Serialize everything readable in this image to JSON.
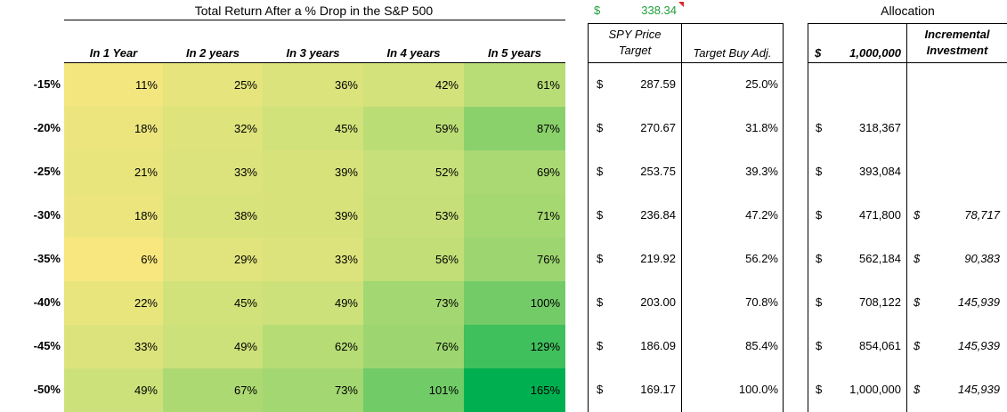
{
  "heatmap": {
    "title": "Total Return After a % Drop in the S&P 500",
    "columns": [
      "In 1 Year",
      "In 2 years",
      "In 3 years",
      "In 4 years",
      "In 5 years"
    ],
    "row_labels": [
      "-15%",
      "-20%",
      "-25%",
      "-30%",
      "-35%",
      "-40%",
      "-45%",
      "-50%"
    ],
    "values": [
      [
        "11%",
        "25%",
        "36%",
        "42%",
        "61%"
      ],
      [
        "18%",
        "32%",
        "45%",
        "59%",
        "87%"
      ],
      [
        "21%",
        "33%",
        "39%",
        "52%",
        "69%"
      ],
      [
        "18%",
        "38%",
        "39%",
        "53%",
        "71%"
      ],
      [
        "6%",
        "29%",
        "33%",
        "56%",
        "76%"
      ],
      [
        "22%",
        "45%",
        "49%",
        "73%",
        "100%"
      ],
      [
        "33%",
        "49%",
        "62%",
        "76%",
        "129%"
      ],
      [
        "49%",
        "67%",
        "73%",
        "101%",
        "165%"
      ]
    ],
    "color_low": "#f8e77f",
    "color_mid": "#cde17a",
    "color_high": "#00b050"
  },
  "spy_price": {
    "currency": "$",
    "value": "338.34",
    "color": "#1f9e3a"
  },
  "targets": {
    "header_line1": "SPY Price",
    "header_line2": "Target",
    "adj_header": "Target Buy Adj.",
    "currency": "$",
    "prices": [
      "287.59",
      "270.67",
      "253.75",
      "236.84",
      "219.92",
      "203.00",
      "186.09",
      "169.17"
    ],
    "adjustments": [
      "25.0%",
      "31.8%",
      "39.3%",
      "47.2%",
      "56.2%",
      "70.8%",
      "85.4%",
      "100.0%"
    ]
  },
  "allocation": {
    "title": "Allocation",
    "currency": "$",
    "total": "1,000,000",
    "incremental_line1": "Incremental",
    "incremental_line2": "Investment",
    "amounts": [
      "",
      "318,367",
      "393,084",
      "471,800",
      "562,184",
      "708,122",
      "854,061",
      "1,000,000"
    ],
    "incremental": [
      "",
      "",
      "",
      "78,717",
      "90,383",
      "145,939",
      "145,939",
      "145,939"
    ]
  }
}
